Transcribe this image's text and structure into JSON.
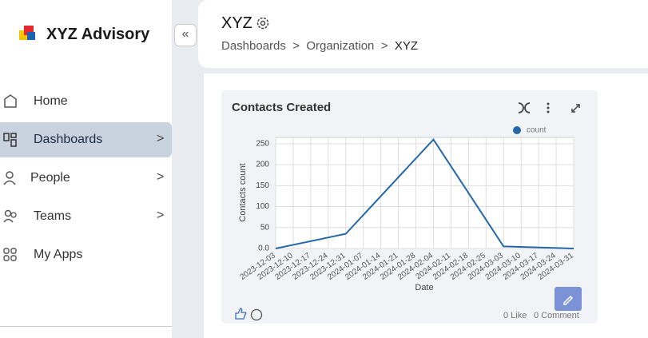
{
  "brand": "XYZ Advisory",
  "nav": [
    {
      "label": "Home"
    },
    {
      "label": "Dashboards"
    },
    {
      "label": "People"
    },
    {
      "label": "Teams"
    },
    {
      "label": "My Apps"
    }
  ],
  "header": {
    "title": "XYZ",
    "breadcrumb": [
      "Dashboards",
      "Organization",
      "XYZ"
    ]
  },
  "widget": {
    "likes": "0 Like",
    "comments": "0 Comment"
  },
  "chart_data": {
    "type": "line",
    "title": "Contacts Created",
    "x_label": "Date",
    "y_label": "Contacts count",
    "x": [
      "2023-12-03",
      "2023-12-31",
      "2024-02-04",
      "2024-03-03",
      "2024-03-31"
    ],
    "series": [
      {
        "name": "count",
        "color": "#2467a8",
        "values": [
          0,
          35,
          260,
          5,
          0
        ]
      }
    ],
    "xlim": [
      "2023-12-03",
      "2024-03-31"
    ],
    "xticks": [
      "2023-12-03",
      "2023-12-10",
      "2023-12-17",
      "2023-12-24",
      "2023-12-31",
      "2024-01-07",
      "2024-01-14",
      "2024-01-21",
      "2024-01-28",
      "2024-02-04",
      "2024-02-11",
      "2024-02-18",
      "2024-02-25",
      "2024-03-03",
      "2024-03-10",
      "2024-03-17",
      "2024-03-24",
      "2024-03-31"
    ],
    "ylim": [
      0,
      265
    ],
    "yticks": [
      {
        "value": 0,
        "label": "0.0"
      },
      50,
      100,
      150,
      200,
      250
    ],
    "grid": true,
    "legend": "top-right"
  }
}
